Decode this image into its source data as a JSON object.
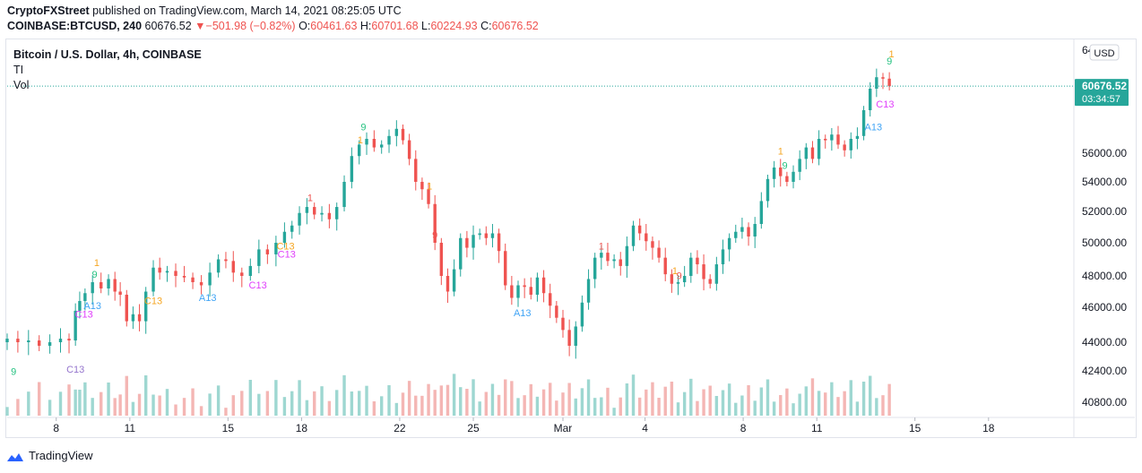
{
  "header": {
    "author": "CryptoFXStreet",
    "published": "published on TradingView.com, March 14, 2021 08:25:05 UTC"
  },
  "ohlc": {
    "symbol": "COINBASE:BTCUSD, 240",
    "last": "60676.52",
    "change_arrow": "▼",
    "change": "−501.98 (−0.82%)",
    "open_label": "O:",
    "open": "60461.63",
    "high_label": "H:",
    "high": "60701.68",
    "low_label": "L:",
    "low": "60224.93",
    "close_label": "C:",
    "close": "60676.52"
  },
  "legend": {
    "title": "Bitcoin / U.S. Dollar, 4h, COINBASE",
    "indicator1": "TI",
    "indicator2": "Vol"
  },
  "currency_button": "USD",
  "price_label": {
    "value": "60676.52",
    "countdown": "03:34:57"
  },
  "branding": "TradingView",
  "colors": {
    "up": "#26a69a",
    "down": "#ef5350",
    "vol_up": "#9ed7d1",
    "vol_down": "#f4b6b4",
    "price_tag": "#26a69a",
    "green_mark": "#26c281",
    "orange_mark": "#f5a623",
    "red_mark": "#ef5350",
    "blue_mark": "#42a5f5",
    "pink_mark": "#e040fb",
    "purple_mark": "#9575cd"
  },
  "chart_data": {
    "type": "candlestick",
    "y_ticks": [
      "56000.00",
      "54000.00",
      "52000.00",
      "50000.00",
      "48000.00",
      "46000.00",
      "44000.00",
      "42400.00",
      "40800.00"
    ],
    "y_axis_top_tick": "64",
    "x_ticks": [
      {
        "label": "8",
        "t": 0.046
      },
      {
        "label": "11",
        "t": 0.115
      },
      {
        "label": "15",
        "t": 0.207
      },
      {
        "label": "18",
        "t": 0.276
      },
      {
        "label": "22",
        "t": 0.368
      },
      {
        "label": "25",
        "t": 0.437
      },
      {
        "label": "Mar",
        "t": 0.521
      },
      {
        "label": "4",
        "t": 0.598
      },
      {
        "label": "8",
        "t": 0.69
      },
      {
        "label": "11",
        "t": 0.759
      },
      {
        "label": "15",
        "t": 0.851
      },
      {
        "label": "18",
        "t": 0.92
      }
    ],
    "x_range": [
      "Mar 6",
      "Mar 14"
    ],
    "close_series": [
      {
        "t": 0.0,
        "c": 44200
      },
      {
        "t": 0.01,
        "c": 44000
      },
      {
        "t": 0.02,
        "c": 44100
      },
      {
        "t": 0.03,
        "c": 43800
      },
      {
        "t": 0.04,
        "c": 44000
      },
      {
        "t": 0.05,
        "c": 44200
      },
      {
        "t": 0.058,
        "c": 44100
      },
      {
        "t": 0.064,
        "c": 45800
      },
      {
        "t": 0.068,
        "c": 46400
      },
      {
        "t": 0.073,
        "c": 46900
      },
      {
        "t": 0.08,
        "c": 47600
      },
      {
        "t": 0.088,
        "c": 47200
      },
      {
        "t": 0.095,
        "c": 47800
      },
      {
        "t": 0.101,
        "c": 47000
      },
      {
        "t": 0.106,
        "c": 46800
      },
      {
        "t": 0.112,
        "c": 45200
      },
      {
        "t": 0.118,
        "c": 45600
      },
      {
        "t": 0.124,
        "c": 45200
      },
      {
        "t": 0.13,
        "c": 47000
      },
      {
        "t": 0.137,
        "c": 48500
      },
      {
        "t": 0.143,
        "c": 48200
      },
      {
        "t": 0.15,
        "c": 48300
      },
      {
        "t": 0.158,
        "c": 48000
      },
      {
        "t": 0.166,
        "c": 47900
      },
      {
        "t": 0.174,
        "c": 47600
      },
      {
        "t": 0.182,
        "c": 47400
      },
      {
        "t": 0.19,
        "c": 48200
      },
      {
        "t": 0.198,
        "c": 49000
      },
      {
        "t": 0.205,
        "c": 48900
      },
      {
        "t": 0.212,
        "c": 48200
      },
      {
        "t": 0.22,
        "c": 48000
      },
      {
        "t": 0.228,
        "c": 48600
      },
      {
        "t": 0.236,
        "c": 49600
      },
      {
        "t": 0.244,
        "c": 49300
      },
      {
        "t": 0.252,
        "c": 50000
      },
      {
        "t": 0.26,
        "c": 50700
      },
      {
        "t": 0.267,
        "c": 51100
      },
      {
        "t": 0.274,
        "c": 51900
      },
      {
        "t": 0.281,
        "c": 52300
      },
      {
        "t": 0.288,
        "c": 51800
      },
      {
        "t": 0.295,
        "c": 51900
      },
      {
        "t": 0.302,
        "c": 51500
      },
      {
        "t": 0.309,
        "c": 52300
      },
      {
        "t": 0.316,
        "c": 54000
      },
      {
        "t": 0.323,
        "c": 55800
      },
      {
        "t": 0.33,
        "c": 56600
      },
      {
        "t": 0.337,
        "c": 57000
      },
      {
        "t": 0.344,
        "c": 56400
      },
      {
        "t": 0.351,
        "c": 56600
      },
      {
        "t": 0.358,
        "c": 57200
      },
      {
        "t": 0.365,
        "c": 57700
      },
      {
        "t": 0.371,
        "c": 56900
      },
      {
        "t": 0.377,
        "c": 55600
      },
      {
        "t": 0.383,
        "c": 54000
      },
      {
        "t": 0.389,
        "c": 53500
      },
      {
        "t": 0.395,
        "c": 52500
      },
      {
        "t": 0.401,
        "c": 50000
      },
      {
        "t": 0.407,
        "c": 48000
      },
      {
        "t": 0.413,
        "c": 47000
      },
      {
        "t": 0.419,
        "c": 48400
      },
      {
        "t": 0.425,
        "c": 50300
      },
      {
        "t": 0.431,
        "c": 49700
      },
      {
        "t": 0.437,
        "c": 50500
      },
      {
        "t": 0.443,
        "c": 50600
      },
      {
        "t": 0.449,
        "c": 50300
      },
      {
        "t": 0.455,
        "c": 50600
      },
      {
        "t": 0.461,
        "c": 49500
      },
      {
        "t": 0.467,
        "c": 47400
      },
      {
        "t": 0.473,
        "c": 46600
      },
      {
        "t": 0.479,
        "c": 47400
      },
      {
        "t": 0.485,
        "c": 47300
      },
      {
        "t": 0.491,
        "c": 46800
      },
      {
        "t": 0.497,
        "c": 47900
      },
      {
        "t": 0.503,
        "c": 46900
      },
      {
        "t": 0.509,
        "c": 46100
      },
      {
        "t": 0.515,
        "c": 45400
      },
      {
        "t": 0.521,
        "c": 44700
      },
      {
        "t": 0.527,
        "c": 43800
      },
      {
        "t": 0.533,
        "c": 44900
      },
      {
        "t": 0.539,
        "c": 46300
      },
      {
        "t": 0.545,
        "c": 47800
      },
      {
        "t": 0.551,
        "c": 49100
      },
      {
        "t": 0.557,
        "c": 49400
      },
      {
        "t": 0.563,
        "c": 48900
      },
      {
        "t": 0.569,
        "c": 49000
      },
      {
        "t": 0.575,
        "c": 48600
      },
      {
        "t": 0.581,
        "c": 49800
      },
      {
        "t": 0.587,
        "c": 51100
      },
      {
        "t": 0.593,
        "c": 50600
      },
      {
        "t": 0.599,
        "c": 50100
      },
      {
        "t": 0.605,
        "c": 49700
      },
      {
        "t": 0.611,
        "c": 49100
      },
      {
        "t": 0.617,
        "c": 48100
      },
      {
        "t": 0.623,
        "c": 47500
      },
      {
        "t": 0.629,
        "c": 47600
      },
      {
        "t": 0.635,
        "c": 48000
      },
      {
        "t": 0.641,
        "c": 49100
      },
      {
        "t": 0.647,
        "c": 48700
      },
      {
        "t": 0.653,
        "c": 47800
      },
      {
        "t": 0.659,
        "c": 47500
      },
      {
        "t": 0.665,
        "c": 48700
      },
      {
        "t": 0.671,
        "c": 49600
      },
      {
        "t": 0.677,
        "c": 50300
      },
      {
        "t": 0.683,
        "c": 50700
      },
      {
        "t": 0.689,
        "c": 51000
      },
      {
        "t": 0.695,
        "c": 50400
      },
      {
        "t": 0.701,
        "c": 51200
      },
      {
        "t": 0.707,
        "c": 52700
      },
      {
        "t": 0.713,
        "c": 54200
      },
      {
        "t": 0.719,
        "c": 55000
      },
      {
        "t": 0.725,
        "c": 54400
      },
      {
        "t": 0.731,
        "c": 54000
      },
      {
        "t": 0.737,
        "c": 54700
      },
      {
        "t": 0.743,
        "c": 55600
      },
      {
        "t": 0.749,
        "c": 56400
      },
      {
        "t": 0.755,
        "c": 55600
      },
      {
        "t": 0.761,
        "c": 57000
      },
      {
        "t": 0.767,
        "c": 56900
      },
      {
        "t": 0.773,
        "c": 57300
      },
      {
        "t": 0.779,
        "c": 56600
      },
      {
        "t": 0.785,
        "c": 56200
      },
      {
        "t": 0.791,
        "c": 57000
      },
      {
        "t": 0.797,
        "c": 57200
      },
      {
        "t": 0.803,
        "c": 59000
      },
      {
        "t": 0.809,
        "c": 60500
      },
      {
        "t": 0.815,
        "c": 61300
      },
      {
        "t": 0.821,
        "c": 61200
      },
      {
        "t": 0.827,
        "c": 60676
      }
    ]
  },
  "td_labels": [
    {
      "text": "9",
      "t": 0.006,
      "p": 42200,
      "color": "green"
    },
    {
      "text": "C13",
      "t": 0.064,
      "p": 42300,
      "color": "purple"
    },
    {
      "text": "C13",
      "t": 0.072,
      "p": 45400,
      "color": "pink"
    },
    {
      "text": "A13",
      "t": 0.08,
      "p": 45900,
      "color": "blue"
    },
    {
      "text": "9",
      "t": 0.082,
      "p": 47900,
      "color": "green"
    },
    {
      "text": "1",
      "t": 0.084,
      "p": 48600,
      "color": "orange"
    },
    {
      "text": "C13",
      "t": 0.137,
      "p": 46200,
      "color": "orange"
    },
    {
      "text": "A13",
      "t": 0.188,
      "p": 46400,
      "color": "blue"
    },
    {
      "text": "C13",
      "t": 0.235,
      "p": 47200,
      "color": "pink"
    },
    {
      "text": "C13",
      "t": 0.262,
      "p": 49100,
      "color": "pink"
    },
    {
      "text": "C13",
      "t": 0.261,
      "p": 49600,
      "color": "orange"
    },
    {
      "text": "1",
      "t": 0.284,
      "p": 52700,
      "color": "red"
    },
    {
      "text": "9",
      "t": 0.334,
      "p": 57600,
      "color": "green"
    },
    {
      "text": "1",
      "t": 0.331,
      "p": 56700,
      "color": "orange"
    },
    {
      "text": "1",
      "t": 0.396,
      "p": 53500,
      "color": "orange"
    },
    {
      "text": "9",
      "t": 0.401,
      "p": 50300,
      "color": "red"
    },
    {
      "text": "A13",
      "t": 0.483,
      "p": 45500,
      "color": "blue"
    },
    {
      "text": "1",
      "t": 0.557,
      "p": 49600,
      "color": "red"
    },
    {
      "text": "1",
      "t": 0.626,
      "p": 48100,
      "color": "orange"
    },
    {
      "text": "9",
      "t": 0.63,
      "p": 47800,
      "color": "red"
    },
    {
      "text": "1",
      "t": 0.725,
      "p": 55900,
      "color": "orange"
    },
    {
      "text": "9",
      "t": 0.729,
      "p": 54900,
      "color": "green"
    },
    {
      "text": "A13",
      "t": 0.812,
      "p": 57600,
      "color": "blue"
    },
    {
      "text": "C13",
      "t": 0.823,
      "p": 59200,
      "color": "pink"
    },
    {
      "text": "9",
      "t": 0.827,
      "p": 62200,
      "color": "green"
    },
    {
      "text": "1",
      "t": 0.829,
      "p": 62700,
      "color": "orange"
    }
  ]
}
